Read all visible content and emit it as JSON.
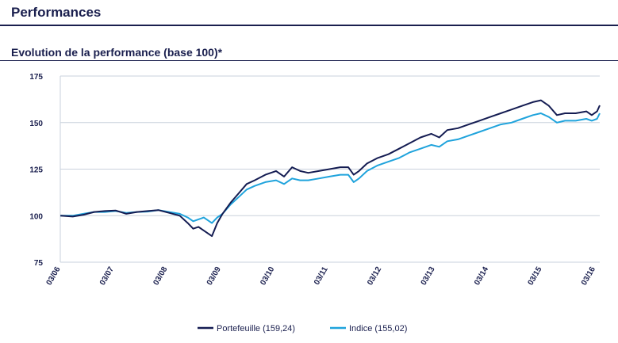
{
  "header": {
    "section_title": "Performances",
    "chart_title": "Evolution de  la  performance (base 100)*"
  },
  "colors": {
    "portefeuille": "#141c52",
    "indice": "#1fa3dc",
    "grid": "#c9d2dc",
    "text": "#1a1f4e"
  },
  "chart_data": {
    "type": "line",
    "title": "Evolution de  la  performance (base 100)*",
    "xlabel": "",
    "ylabel": "",
    "ylim": [
      75,
      175
    ],
    "yticks": [
      75,
      100,
      125,
      150,
      175
    ],
    "ytick_labels": [
      "75",
      "100",
      "125",
      "150",
      "175"
    ],
    "xlim": [
      2006.167,
      2016.25
    ],
    "xtick_labels": [
      "03/06",
      "03/07",
      "03/08",
      "03/09",
      "03/10",
      "03/11",
      "03/12",
      "03/13",
      "03/14",
      "03/15",
      "03/16"
    ],
    "xticks": [
      2006.167,
      2007.167,
      2008.167,
      2009.167,
      2010.167,
      2011.167,
      2012.167,
      2013.167,
      2014.167,
      2015.167,
      2016.167
    ],
    "grid": true,
    "legend_position": "bottom-center",
    "series": [
      {
        "name": "Portefeuille (159,24)",
        "x": [
          2006.17,
          2006.4,
          2006.6,
          2006.8,
          2007.0,
          2007.2,
          2007.4,
          2007.6,
          2007.8,
          2008.0,
          2008.2,
          2008.4,
          2008.55,
          2008.65,
          2008.75,
          2008.85,
          2009.0,
          2009.1,
          2009.2,
          2009.35,
          2009.5,
          2009.65,
          2009.8,
          2010.0,
          2010.2,
          2010.35,
          2010.5,
          2010.65,
          2010.8,
          2011.0,
          2011.2,
          2011.4,
          2011.55,
          2011.65,
          2011.75,
          2011.9,
          2012.1,
          2012.3,
          2012.5,
          2012.7,
          2012.9,
          2013.1,
          2013.25,
          2013.4,
          2013.6,
          2013.8,
          2014.0,
          2014.2,
          2014.4,
          2014.6,
          2014.8,
          2015.0,
          2015.15,
          2015.3,
          2015.45,
          2015.6,
          2015.8,
          2016.0,
          2016.1,
          2016.2,
          2016.25
        ],
        "y": [
          100,
          99.5,
          100.5,
          102,
          102.5,
          102.8,
          101,
          102,
          102.5,
          103,
          101.5,
          100,
          96,
          93,
          94,
          92,
          89,
          96,
          101,
          107,
          112,
          117,
          119,
          122,
          124,
          121,
          126,
          124,
          123,
          124,
          125,
          126,
          126,
          122,
          124,
          128,
          131,
          133,
          136,
          139,
          142,
          144,
          142,
          146,
          147,
          149,
          151,
          153,
          155,
          157,
          159,
          161,
          162,
          159,
          154,
          155,
          155,
          156,
          154,
          156,
          159.24
        ]
      },
      {
        "name": "Indice (155,02)",
        "x": [
          2006.17,
          2006.4,
          2006.6,
          2006.8,
          2007.0,
          2007.2,
          2007.4,
          2007.6,
          2007.8,
          2008.0,
          2008.2,
          2008.4,
          2008.55,
          2008.65,
          2008.75,
          2008.85,
          2009.0,
          2009.1,
          2009.2,
          2009.35,
          2009.5,
          2009.65,
          2009.8,
          2010.0,
          2010.2,
          2010.35,
          2010.5,
          2010.65,
          2010.8,
          2011.0,
          2011.2,
          2011.4,
          2011.55,
          2011.65,
          2011.75,
          2011.9,
          2012.1,
          2012.3,
          2012.5,
          2012.7,
          2012.9,
          2013.1,
          2013.25,
          2013.4,
          2013.6,
          2013.8,
          2014.0,
          2014.2,
          2014.4,
          2014.6,
          2014.8,
          2015.0,
          2015.15,
          2015.3,
          2015.45,
          2015.6,
          2015.8,
          2016.0,
          2016.1,
          2016.2,
          2016.25
        ],
        "y": [
          100,
          100,
          101,
          102,
          102,
          102.5,
          101.5,
          102,
          102.2,
          103,
          102,
          101,
          99,
          97,
          98,
          99,
          96,
          99,
          101,
          106,
          110,
          114,
          116,
          118,
          119,
          117,
          120,
          119,
          119,
          120,
          121,
          122,
          122,
          118,
          120,
          124,
          127,
          129,
          131,
          134,
          136,
          138,
          137,
          140,
          141,
          143,
          145,
          147,
          149,
          150,
          152,
          154,
          155,
          153,
          150,
          151,
          151,
          152,
          151,
          152,
          155.02
        ]
      }
    ]
  }
}
